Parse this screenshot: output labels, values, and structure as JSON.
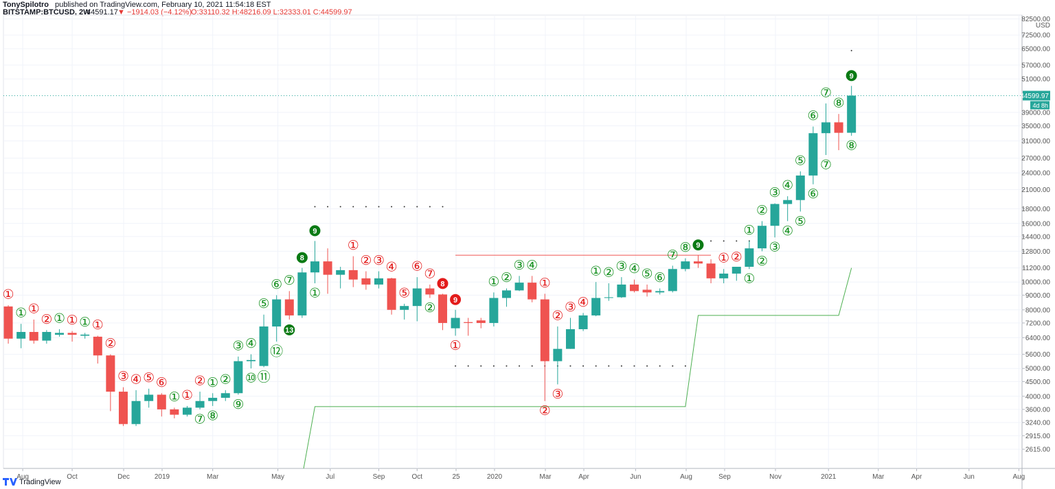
{
  "chart_data": {
    "type": "candlestick",
    "author": "TonySpilotro",
    "title": "published on TradingView.com, February 10, 2021 11:54:18 EST",
    "symbol": "BITSTAMP:BTCUSD, 2W",
    "last": "44591.17",
    "change": "▼ −1914.03 (−4.12%)",
    "ohlc": "O:33110.32 H:48216.09 L:32333.01 C:44599.97",
    "currency": "USD",
    "price_label": "44599.97",
    "countdown": "4d 8h",
    "footer": "TradingView",
    "log": true,
    "grid": true,
    "up_color": "#26a69a",
    "down_color": "#ef5350",
    "open": [
      8220,
      6350,
      6700,
      6250,
      6550,
      6650,
      6500,
      6450,
      5550,
      4150,
      3200,
      3850,
      4050,
      3600,
      3450,
      3650,
      3850,
      3950,
      4100,
      5300,
      5100,
      7000,
      8700,
      7650,
      10800,
      11800,
      10600,
      11000,
      10300,
      9800,
      10300,
      8000,
      8250,
      9500,
      9050,
      6900,
      7250,
      7350,
      7200,
      8800,
      9350,
      9950,
      8700,
      5300,
      5850,
      6850,
      7650,
      8800,
      8850,
      9800,
      9400,
      9200,
      9300,
      11100,
      11800,
      11600,
      10300,
      10700,
      11300,
      13100,
      15700,
      18700,
      19300,
      23500,
      33000,
      36000,
      33110.32
    ],
    "high": [
      8300,
      7150,
      7400,
      6800,
      6850,
      6750,
      6650,
      6500,
      5600,
      4300,
      4200,
      4250,
      4100,
      3650,
      3700,
      4150,
      4100,
      4200,
      5500,
      5600,
      7700,
      9000,
      9300,
      11200,
      13900,
      13100,
      11300,
      12300,
      10900,
      10900,
      10350,
      8400,
      10400,
      9800,
      9100,
      8000,
      7500,
      7500,
      9200,
      9500,
      10500,
      10500,
      9100,
      7000,
      7500,
      7800,
      10000,
      9900,
      10400,
      10200,
      9800,
      9500,
      11400,
      12100,
      12400,
      12000,
      11100,
      11200,
      13900,
      16300,
      18800,
      19900,
      24300,
      34800,
      41900,
      38500,
      48216.09
    ],
    "low": [
      6100,
      5880,
      6100,
      6100,
      6450,
      6200,
      6350,
      5200,
      3550,
      3150,
      3150,
      3650,
      3400,
      3350,
      3400,
      3600,
      3700,
      3850,
      4050,
      5000,
      5050,
      6200,
      7400,
      7500,
      9900,
      9100,
      9500,
      9600,
      9400,
      9500,
      7700,
      7400,
      7300,
      8800,
      6800,
      6500,
      6500,
      6900,
      7000,
      8200,
      9300,
      8500,
      3850,
      4400,
      5850,
      6750,
      7600,
      8600,
      8800,
      9200,
      8900,
      9050,
      9200,
      10900,
      11200,
      9900,
      9900,
      10100,
      11100,
      12800,
      14300,
      16300,
      17600,
      21900,
      27700,
      28800,
      32333.01
    ],
    "close": [
      6350,
      6700,
      6250,
      6700,
      6650,
      6550,
      6560,
      5550,
      4150,
      3200,
      3850,
      4050,
      3600,
      3450,
      3650,
      3850,
      3950,
      4100,
      5300,
      5350,
      7000,
      8700,
      7650,
      10800,
      11800,
      10600,
      11000,
      10200,
      9800,
      10300,
      8000,
      8250,
      9500,
      9050,
      7200,
      7500,
      7200,
      7200,
      8800,
      9350,
      9950,
      8700,
      5300,
      5850,
      6850,
      7650,
      8800,
      8850,
      9800,
      9300,
      9200,
      9300,
      11100,
      11800,
      11600,
      10300,
      10700,
      11300,
      13100,
      15700,
      18700,
      19300,
      23500,
      33000,
      36000,
      33100,
      44599.97
    ],
    "xlim": [
      -0.38,
      79.35
    ],
    "xticks": [
      {
        "value": 1.13,
        "label": "Aug"
      },
      {
        "value": 5,
        "label": "Oct"
      },
      {
        "value": 9.03,
        "label": "Dec"
      },
      {
        "value": 12.04,
        "label": "2019"
      },
      {
        "value": 16,
        "label": "Mar"
      },
      {
        "value": 21.1,
        "label": "May"
      },
      {
        "value": 25.2,
        "label": "Jul"
      },
      {
        "value": 29,
        "label": "Sep"
      },
      {
        "value": 32,
        "label": "Oct"
      },
      {
        "value": 35.05,
        "label": "25"
      },
      {
        "value": 38.06,
        "label": "2020"
      },
      {
        "value": 42.04,
        "label": "Mar"
      },
      {
        "value": 45.05,
        "label": "Apr"
      },
      {
        "value": 49.1,
        "label": "Jun"
      },
      {
        "value": 53.06,
        "label": "Aug"
      },
      {
        "value": 56.07,
        "label": "Sep"
      },
      {
        "value": 60.05,
        "label": "Nov"
      },
      {
        "value": 64.2,
        "label": "2021"
      },
      {
        "value": 68.1,
        "label": "Mar"
      },
      {
        "value": 71.1,
        "label": "Apr"
      },
      {
        "value": 75.2,
        "label": "Jun"
      },
      {
        "value": 79.1,
        "label": "Aug"
      }
    ],
    "ylim": [
      2242,
      85100
    ],
    "yticks": [
      {
        "value": 2615,
        "label": "2615.00"
      },
      {
        "value": 2915,
        "label": "2915.00"
      },
      {
        "value": 3240,
        "label": "3240.00"
      },
      {
        "value": 3600,
        "label": "3600.00"
      },
      {
        "value": 4000,
        "label": "4000.00"
      },
      {
        "value": 4500,
        "label": "4500.00"
      },
      {
        "value": 5000,
        "label": "5000.00"
      },
      {
        "value": 5600,
        "label": "5600.00"
      },
      {
        "value": 6400,
        "label": "6400.00"
      },
      {
        "value": 7200,
        "label": "7200.00"
      },
      {
        "value": 8000,
        "label": "8000.00"
      },
      {
        "value": 9000,
        "label": "9000.00"
      },
      {
        "value": 10000,
        "label": "10000.00"
      },
      {
        "value": 11200,
        "label": "11200.00"
      },
      {
        "value": 12800,
        "label": "12800.00"
      },
      {
        "value": 14400,
        "label": "14400.00"
      },
      {
        "value": 16000,
        "label": "16000.00"
      },
      {
        "value": 18000,
        "label": "18000.00"
      },
      {
        "value": 21000,
        "label": "21000.00"
      },
      {
        "value": 24000,
        "label": "24000.00"
      },
      {
        "value": 27000,
        "label": "27000.00"
      },
      {
        "value": 31000,
        "label": "31000.00"
      },
      {
        "value": 35000,
        "label": "35000.00"
      },
      {
        "value": 39000,
        "label": "39000.00"
      },
      {
        "value": 51000,
        "label": "51000.00"
      },
      {
        "value": 57000,
        "label": "57000.00"
      },
      {
        "value": 65000,
        "label": "65000.00"
      },
      {
        "value": 72500,
        "label": "72500.00"
      },
      {
        "value": 82500,
        "label": "82500.00"
      }
    ],
    "support_line": {
      "color": "#4caf50",
      "x": [
        23,
        24,
        53,
        54,
        65,
        66
      ],
      "values": [
        2100,
        3680,
        3680,
        7650,
        7650,
        11200
      ]
    },
    "resistance_line": {
      "color": "#ef5350",
      "x": [
        35,
        55
      ],
      "values": [
        12400,
        12400
      ]
    },
    "dotted_levels": [
      {
        "value": 18300,
        "from": 24,
        "to": 34
      },
      {
        "value": 5100,
        "from": 35,
        "to": 53
      },
      {
        "value": 13900,
        "from": 55,
        "to": 58
      },
      {
        "value": 64000,
        "from": 66,
        "to": 66
      }
    ],
    "annotations": [
      {
        "candle": 0,
        "label": "①",
        "side": "above",
        "color": "#e31b1b"
      },
      {
        "candle": 1,
        "label": "①",
        "side": "above",
        "color": "#14901e"
      },
      {
        "candle": 2,
        "label": "①",
        "side": "above",
        "color": "#e31b1b"
      },
      {
        "candle": 3,
        "label": "②",
        "side": "above",
        "color": "#e31b1b"
      },
      {
        "candle": 4,
        "label": "①",
        "side": "above",
        "color": "#14901e"
      },
      {
        "candle": 5,
        "label": "①",
        "side": "above",
        "color": "#e31b1b"
      },
      {
        "candle": 6,
        "label": "①",
        "side": "above",
        "color": "#14901e"
      },
      {
        "candle": 7,
        "label": "①",
        "side": "above",
        "color": "#e31b1b"
      },
      {
        "candle": 8,
        "label": "②",
        "side": "above",
        "color": "#e31b1b"
      },
      {
        "candle": 9,
        "label": "③",
        "side": "above",
        "color": "#e31b1b"
      },
      {
        "candle": 10,
        "label": "④",
        "side": "above",
        "color": "#e31b1b"
      },
      {
        "candle": 11,
        "label": "⑤",
        "side": "above",
        "color": "#e31b1b"
      },
      {
        "candle": 12,
        "label": "⑥",
        "side": "above",
        "color": "#e31b1b"
      },
      {
        "candle": 13,
        "label": "①",
        "side": "above",
        "color": "#14901e"
      },
      {
        "candle": 14,
        "label": "①",
        "side": "above",
        "color": "#e31b1b"
      },
      {
        "candle": 15,
        "label": "②",
        "side": "above",
        "color": "#e31b1b"
      },
      {
        "candle": 15,
        "label": "⑦",
        "side": "below",
        "color": "#14901e"
      },
      {
        "candle": 16,
        "label": "①",
        "side": "above",
        "color": "#14901e"
      },
      {
        "candle": 16,
        "label": "⑧",
        "side": "below",
        "color": "#14901e"
      },
      {
        "candle": 17,
        "label": "②",
        "side": "above",
        "color": "#14901e"
      },
      {
        "candle": 18,
        "label": "③",
        "side": "above",
        "color": "#14901e"
      },
      {
        "candle": 18,
        "label": "⑨",
        "side": "below",
        "color": "#14901e"
      },
      {
        "candle": 19,
        "label": "④",
        "side": "above",
        "color": "#14901e"
      },
      {
        "candle": 19,
        "label": "⑩",
        "side": "below",
        "color": "#14901e"
      },
      {
        "candle": 20,
        "label": "⑤",
        "side": "above",
        "color": "#14901e"
      },
      {
        "candle": 20,
        "label": "⑪",
        "side": "below",
        "color": "#14901e"
      },
      {
        "candle": 21,
        "label": "⑥",
        "side": "above",
        "color": "#14901e"
      },
      {
        "candle": 21,
        "label": "⑫",
        "side": "below",
        "color": "#14901e"
      },
      {
        "candle": 22,
        "label": "⑦",
        "side": "above",
        "color": "#14901e"
      },
      {
        "candle": 22,
        "label": "13",
        "side": "below",
        "color": "#0a7a14",
        "filled": true
      },
      {
        "candle": 23,
        "label": "8",
        "side": "above",
        "color": "#0a7a14",
        "filled": true
      },
      {
        "candle": 24,
        "label": "9",
        "side": "above",
        "color": "#0a7a14",
        "filled": true
      },
      {
        "candle": 24,
        "label": "①",
        "side": "below",
        "color": "#14901e"
      },
      {
        "candle": 27,
        "label": "①",
        "side": "above",
        "color": "#e31b1b"
      },
      {
        "candle": 28,
        "label": "②",
        "side": "above",
        "color": "#e31b1b"
      },
      {
        "candle": 29,
        "label": "③",
        "side": "above",
        "color": "#e31b1b"
      },
      {
        "candle": 30,
        "label": "④",
        "side": "above",
        "color": "#e31b1b"
      },
      {
        "candle": 31,
        "label": "⑤",
        "side": "above",
        "color": "#e31b1b"
      },
      {
        "candle": 32,
        "label": "⑥",
        "side": "above",
        "color": "#e31b1b"
      },
      {
        "candle": 33,
        "label": "⑦",
        "side": "above",
        "color": "#e31b1b"
      },
      {
        "candle": 33,
        "label": "②",
        "side": "below",
        "color": "#14901e"
      },
      {
        "candle": 34,
        "label": "8",
        "side": "above",
        "color": "#e31b1b",
        "filled": true
      },
      {
        "candle": 35,
        "label": "9",
        "side": "above",
        "color": "#e31b1b",
        "filled": true
      },
      {
        "candle": 35,
        "label": "①",
        "side": "below",
        "color": "#e31b1b"
      },
      {
        "candle": 38,
        "label": "①",
        "side": "above",
        "color": "#14901e"
      },
      {
        "candle": 39,
        "label": "②",
        "side": "above",
        "color": "#14901e"
      },
      {
        "candle": 40,
        "label": "③",
        "side": "above",
        "color": "#14901e"
      },
      {
        "candle": 41,
        "label": "④",
        "side": "above",
        "color": "#14901e"
      },
      {
        "candle": 42,
        "label": "①",
        "side": "above",
        "color": "#e31b1b"
      },
      {
        "candle": 42,
        "label": "②",
        "side": "below",
        "color": "#e31b1b"
      },
      {
        "candle": 43,
        "label": "②",
        "side": "above",
        "color": "#e31b1b"
      },
      {
        "candle": 43,
        "label": "③",
        "side": "below",
        "color": "#e31b1b"
      },
      {
        "candle": 44,
        "label": "③",
        "side": "above",
        "color": "#e31b1b"
      },
      {
        "candle": 45,
        "label": "④",
        "side": "above",
        "color": "#e31b1b"
      },
      {
        "candle": 46,
        "label": "①",
        "side": "above",
        "color": "#14901e"
      },
      {
        "candle": 47,
        "label": "②",
        "side": "above",
        "color": "#14901e"
      },
      {
        "candle": 48,
        "label": "③",
        "side": "above",
        "color": "#14901e"
      },
      {
        "candle": 49,
        "label": "④",
        "side": "above",
        "color": "#14901e"
      },
      {
        "candle": 50,
        "label": "⑤",
        "side": "above",
        "color": "#14901e"
      },
      {
        "candle": 51,
        "label": "⑥",
        "side": "above",
        "color": "#14901e"
      },
      {
        "candle": 52,
        "label": "⑦",
        "side": "above",
        "color": "#14901e"
      },
      {
        "candle": 53,
        "label": "⑧",
        "side": "above",
        "color": "#14901e"
      },
      {
        "candle": 54,
        "label": "9",
        "side": "above",
        "color": "#0a7a14",
        "filled": true
      },
      {
        "candle": 56,
        "label": "①",
        "side": "above",
        "color": "#e31b1b"
      },
      {
        "candle": 57,
        "label": "②",
        "side": "above",
        "color": "#e31b1b"
      },
      {
        "candle": 58,
        "label": "①",
        "side": "above",
        "color": "#14901e"
      },
      {
        "candle": 58,
        "label": "①",
        "side": "below",
        "color": "#14901e"
      },
      {
        "candle": 59,
        "label": "②",
        "side": "above",
        "color": "#14901e"
      },
      {
        "candle": 59,
        "label": "②",
        "side": "below",
        "color": "#14901e"
      },
      {
        "candle": 60,
        "label": "③",
        "side": "above",
        "color": "#14901e"
      },
      {
        "candle": 60,
        "label": "③",
        "side": "below",
        "color": "#14901e"
      },
      {
        "candle": 61,
        "label": "④",
        "side": "above",
        "color": "#14901e"
      },
      {
        "candle": 61,
        "label": "④",
        "side": "below",
        "color": "#14901e"
      },
      {
        "candle": 62,
        "label": "⑤",
        "side": "above",
        "color": "#14901e"
      },
      {
        "candle": 62,
        "label": "⑤",
        "side": "below",
        "color": "#14901e"
      },
      {
        "candle": 63,
        "label": "⑥",
        "side": "above",
        "color": "#14901e"
      },
      {
        "candle": 63,
        "label": "⑥",
        "side": "below",
        "color": "#14901e"
      },
      {
        "candle": 64,
        "label": "⑦",
        "side": "above",
        "color": "#14901e"
      },
      {
        "candle": 64,
        "label": "⑦",
        "side": "below",
        "color": "#14901e"
      },
      {
        "candle": 65,
        "label": "⑧",
        "side": "above",
        "color": "#14901e"
      },
      {
        "candle": 66,
        "label": "9",
        "side": "above",
        "color": "#0a7a14",
        "filled": true
      },
      {
        "candle": 66,
        "label": "⑧",
        "side": "below",
        "color": "#14901e"
      }
    ]
  }
}
